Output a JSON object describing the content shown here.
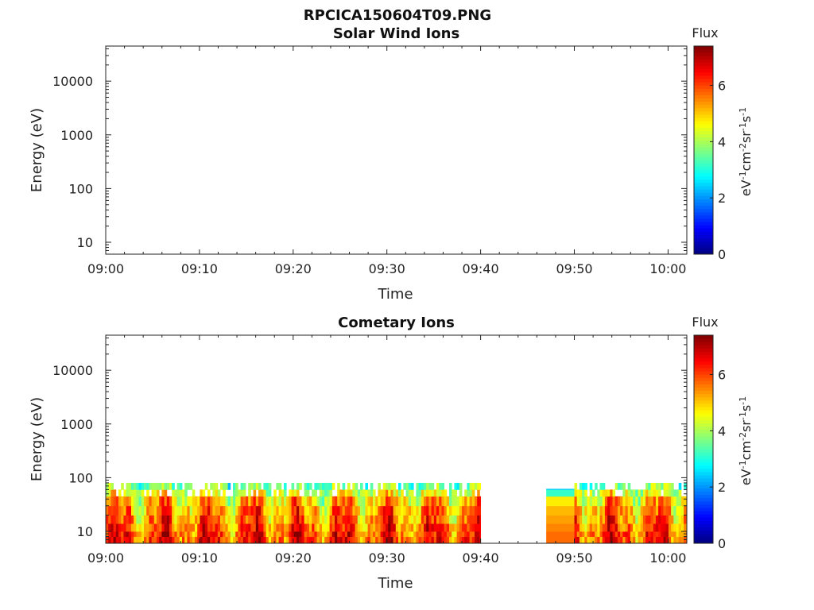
{
  "figure_title": "RPCICA150604T09.PNG",
  "chart_data": [
    {
      "type": "heatmap",
      "title": "Solar Wind Ions",
      "xlabel": "Time",
      "ylabel": "Energy (eV)",
      "x_ticks": [
        "09:00",
        "09:10",
        "09:20",
        "09:30",
        "09:40",
        "09:50",
        "10:00"
      ],
      "y_ticks": [
        "10",
        "100",
        "1000",
        "10000"
      ],
      "y_scale": "log",
      "ylim": [
        6,
        45000
      ],
      "xlim": [
        "09:00",
        "10:02"
      ],
      "colorbar": {
        "title": "Flux",
        "label": "eV-1cm-2sr-1s-1",
        "ticks": [
          "0",
          "2",
          "4",
          "6"
        ],
        "range": [
          0,
          7.4
        ],
        "colormap": "jet"
      },
      "data_present": false
    },
    {
      "type": "heatmap",
      "title": "Cometary Ions",
      "xlabel": "Time",
      "ylabel": "Energy (eV)",
      "x_ticks": [
        "09:00",
        "09:10",
        "09:20",
        "09:30",
        "09:40",
        "09:50",
        "10:00"
      ],
      "y_ticks": [
        "10",
        "100",
        "1000",
        "10000"
      ],
      "y_scale": "log",
      "ylim": [
        6,
        45000
      ],
      "xlim": [
        "09:00",
        "10:02"
      ],
      "colorbar": {
        "title": "Flux",
        "label": "eV-1cm-2sr-1s-1",
        "ticks": [
          "0",
          "2",
          "4",
          "6"
        ],
        "range": [
          0,
          7.4
        ],
        "colormap": "jet"
      },
      "data_present": true,
      "segments": [
        {
          "start": "09:00",
          "end": "09:40",
          "energy_max_ev": 80,
          "kind": "variable"
        },
        {
          "start": "09:47",
          "end": "09:50",
          "energy_max_ev": 62,
          "kind": "flat"
        },
        {
          "start": "09:50",
          "end": "10:02",
          "energy_max_ev": 80,
          "kind": "variable"
        }
      ],
      "flux_profile": {
        "energy_ev": [
          6,
          8,
          10,
          14,
          20,
          30,
          45,
          60,
          80
        ],
        "mean_flux": [
          6.0,
          6.0,
          5.8,
          5.6,
          5.4,
          5.0,
          4.4,
          3.6,
          2.8
        ]
      }
    }
  ]
}
